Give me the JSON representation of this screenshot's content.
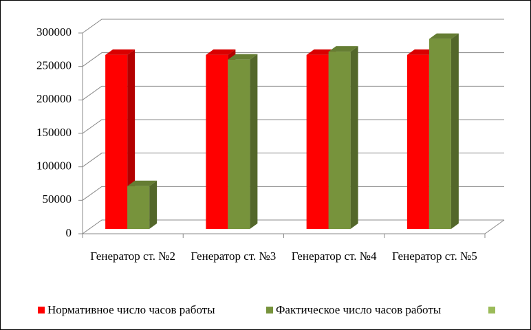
{
  "chart_data": {
    "type": "bar3d",
    "categories": [
      "Генератор ст. №2",
      "Генератор ст. №3",
      "Генератор ст. №4",
      "Генератор ст. №5"
    ],
    "series": [
      {
        "name": "Нормативное число часов работы",
        "color": "#ff0000",
        "values": [
          260000,
          260000,
          260000,
          260000
        ]
      },
      {
        "name": "Фактическое число часов работы",
        "color": "#77933c",
        "values": [
          64000,
          253000,
          265000,
          284000
        ]
      }
    ],
    "ylim": [
      0,
      300000
    ],
    "yticks": [
      0,
      50000,
      100000,
      150000,
      200000,
      250000,
      300000
    ],
    "grid": true,
    "legend": "bottom"
  }
}
